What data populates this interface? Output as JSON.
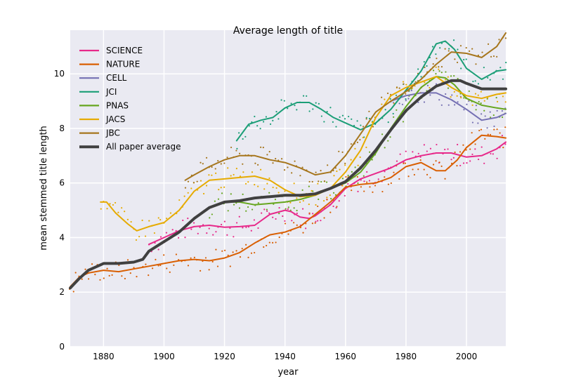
{
  "chart_data": {
    "type": "line",
    "title": "Average length of title",
    "xlabel": "year",
    "ylabel": "mean stemmed title length",
    "xlim": [
      1869,
      2013
    ],
    "ylim": [
      0,
      11.6
    ],
    "xticks": [
      1880,
      1900,
      1920,
      1940,
      1960,
      1980,
      2000
    ],
    "yticks": [
      0,
      2,
      4,
      6,
      8,
      10
    ],
    "grid": true,
    "legend_position": "top-left",
    "series": [
      {
        "name": "SCIENCE",
        "color": "#e7298a",
        "points": [
          [
            1895,
            3.75
          ],
          [
            1900,
            4.0
          ],
          [
            1905,
            4.25
          ],
          [
            1910,
            4.4
          ],
          [
            1915,
            4.45
          ],
          [
            1920,
            4.38
          ],
          [
            1925,
            4.4
          ],
          [
            1930,
            4.45
          ],
          [
            1935,
            4.85
          ],
          [
            1940,
            5.0
          ],
          [
            1942,
            4.95
          ],
          [
            1945,
            4.75
          ],
          [
            1948,
            4.7
          ],
          [
            1950,
            4.8
          ],
          [
            1955,
            5.2
          ],
          [
            1960,
            5.8
          ],
          [
            1965,
            6.15
          ],
          [
            1970,
            6.35
          ],
          [
            1975,
            6.55
          ],
          [
            1980,
            6.85
          ],
          [
            1985,
            7.0
          ],
          [
            1990,
            7.1
          ],
          [
            1995,
            7.1
          ],
          [
            2000,
            6.95
          ],
          [
            2005,
            7.0
          ],
          [
            2010,
            7.25
          ],
          [
            2013,
            7.5
          ]
        ]
      },
      {
        "name": "NATURE",
        "color": "#d95f02",
        "points": [
          [
            1869,
            2.2
          ],
          [
            1872,
            2.55
          ],
          [
            1875,
            2.7
          ],
          [
            1880,
            2.8
          ],
          [
            1885,
            2.75
          ],
          [
            1890,
            2.85
          ],
          [
            1895,
            2.95
          ],
          [
            1900,
            3.05
          ],
          [
            1905,
            3.15
          ],
          [
            1910,
            3.2
          ],
          [
            1915,
            3.15
          ],
          [
            1920,
            3.25
          ],
          [
            1925,
            3.45
          ],
          [
            1930,
            3.8
          ],
          [
            1935,
            4.1
          ],
          [
            1940,
            4.2
          ],
          [
            1945,
            4.4
          ],
          [
            1950,
            4.85
          ],
          [
            1955,
            5.3
          ],
          [
            1960,
            5.85
          ],
          [
            1965,
            5.95
          ],
          [
            1970,
            6.0
          ],
          [
            1975,
            6.2
          ],
          [
            1980,
            6.6
          ],
          [
            1985,
            6.75
          ],
          [
            1990,
            6.45
          ],
          [
            1993,
            6.45
          ],
          [
            1997,
            6.85
          ],
          [
            2000,
            7.3
          ],
          [
            2005,
            7.75
          ],
          [
            2010,
            7.7
          ],
          [
            2013,
            7.65
          ]
        ]
      },
      {
        "name": "CELL",
        "color": "#7570b3",
        "points": [
          [
            1975,
            9.0
          ],
          [
            1980,
            9.2
          ],
          [
            1985,
            9.3
          ],
          [
            1990,
            9.3
          ],
          [
            1995,
            9.05
          ],
          [
            2000,
            8.7
          ],
          [
            2005,
            8.3
          ],
          [
            2010,
            8.4
          ],
          [
            2013,
            8.55
          ]
        ]
      },
      {
        "name": "JCI",
        "color": "#1b9e77",
        "points": [
          [
            1924,
            7.55
          ],
          [
            1928,
            8.15
          ],
          [
            1932,
            8.3
          ],
          [
            1936,
            8.4
          ],
          [
            1940,
            8.75
          ],
          [
            1944,
            8.95
          ],
          [
            1948,
            8.95
          ],
          [
            1952,
            8.7
          ],
          [
            1956,
            8.4
          ],
          [
            1960,
            8.2
          ],
          [
            1965,
            7.95
          ],
          [
            1970,
            8.2
          ],
          [
            1975,
            8.7
          ],
          [
            1980,
            9.4
          ],
          [
            1985,
            10.1
          ],
          [
            1990,
            11.1
          ],
          [
            1993,
            11.2
          ],
          [
            1996,
            10.9
          ],
          [
            2000,
            10.2
          ],
          [
            2005,
            9.8
          ],
          [
            2010,
            10.1
          ],
          [
            2013,
            10.15
          ]
        ]
      },
      {
        "name": "PNAS",
        "color": "#66a61e",
        "points": [
          [
            1915,
            5.1
          ],
          [
            1920,
            5.3
          ],
          [
            1925,
            5.3
          ],
          [
            1930,
            5.2
          ],
          [
            1935,
            5.25
          ],
          [
            1940,
            5.3
          ],
          [
            1945,
            5.4
          ],
          [
            1950,
            5.55
          ],
          [
            1955,
            5.8
          ],
          [
            1960,
            6.0
          ],
          [
            1965,
            6.4
          ],
          [
            1970,
            7.1
          ],
          [
            1975,
            8.0
          ],
          [
            1980,
            8.8
          ],
          [
            1985,
            9.5
          ],
          [
            1990,
            9.9
          ],
          [
            1993,
            9.85
          ],
          [
            1996,
            9.6
          ],
          [
            2000,
            9.1
          ],
          [
            2005,
            8.85
          ],
          [
            2010,
            8.75
          ],
          [
            2013,
            8.7
          ]
        ]
      },
      {
        "name": "JACS",
        "color": "#e6ab02",
        "points": [
          [
            1879,
            5.3
          ],
          [
            1881,
            5.3
          ],
          [
            1884,
            4.9
          ],
          [
            1888,
            4.5
          ],
          [
            1891,
            4.25
          ],
          [
            1895,
            4.4
          ],
          [
            1900,
            4.55
          ],
          [
            1905,
            5.0
          ],
          [
            1910,
            5.7
          ],
          [
            1915,
            6.1
          ],
          [
            1920,
            6.15
          ],
          [
            1925,
            6.2
          ],
          [
            1930,
            6.25
          ],
          [
            1935,
            6.1
          ],
          [
            1940,
            5.75
          ],
          [
            1945,
            5.5
          ],
          [
            1950,
            5.55
          ],
          [
            1955,
            5.8
          ],
          [
            1960,
            6.4
          ],
          [
            1965,
            7.2
          ],
          [
            1970,
            8.4
          ],
          [
            1975,
            9.2
          ],
          [
            1980,
            9.5
          ],
          [
            1985,
            9.7
          ],
          [
            1990,
            9.9
          ],
          [
            1995,
            9.5
          ],
          [
            2000,
            9.2
          ],
          [
            2005,
            9.1
          ],
          [
            2010,
            9.25
          ],
          [
            2013,
            9.3
          ]
        ]
      },
      {
        "name": "JBC",
        "color": "#a6761d",
        "points": [
          [
            1907,
            6.1
          ],
          [
            1910,
            6.3
          ],
          [
            1915,
            6.6
          ],
          [
            1920,
            6.85
          ],
          [
            1925,
            7.0
          ],
          [
            1930,
            7.0
          ],
          [
            1935,
            6.85
          ],
          [
            1940,
            6.75
          ],
          [
            1945,
            6.55
          ],
          [
            1950,
            6.3
          ],
          [
            1955,
            6.4
          ],
          [
            1960,
            7.0
          ],
          [
            1965,
            7.8
          ],
          [
            1970,
            8.6
          ],
          [
            1975,
            9.0
          ],
          [
            1980,
            9.35
          ],
          [
            1985,
            9.8
          ],
          [
            1990,
            10.35
          ],
          [
            1995,
            10.8
          ],
          [
            2000,
            10.75
          ],
          [
            2005,
            10.6
          ],
          [
            2010,
            11.0
          ],
          [
            2013,
            11.5
          ]
        ]
      },
      {
        "name": "All paper average",
        "color": "#404040",
        "thick": true,
        "points": [
          [
            1869,
            2.15
          ],
          [
            1872,
            2.5
          ],
          [
            1875,
            2.8
          ],
          [
            1878,
            2.95
          ],
          [
            1880,
            3.05
          ],
          [
            1885,
            3.05
          ],
          [
            1890,
            3.1
          ],
          [
            1893,
            3.2
          ],
          [
            1895,
            3.5
          ],
          [
            1900,
            3.85
          ],
          [
            1905,
            4.2
          ],
          [
            1910,
            4.7
          ],
          [
            1915,
            5.1
          ],
          [
            1920,
            5.3
          ],
          [
            1925,
            5.35
          ],
          [
            1930,
            5.45
          ],
          [
            1935,
            5.5
          ],
          [
            1940,
            5.55
          ],
          [
            1945,
            5.55
          ],
          [
            1950,
            5.6
          ],
          [
            1955,
            5.8
          ],
          [
            1960,
            6.05
          ],
          [
            1965,
            6.55
          ],
          [
            1970,
            7.2
          ],
          [
            1975,
            7.95
          ],
          [
            1980,
            8.65
          ],
          [
            1985,
            9.15
          ],
          [
            1990,
            9.55
          ],
          [
            1995,
            9.75
          ],
          [
            1998,
            9.75
          ],
          [
            2000,
            9.65
          ],
          [
            2005,
            9.45
          ],
          [
            2010,
            9.45
          ],
          [
            2013,
            9.45
          ]
        ]
      }
    ]
  }
}
